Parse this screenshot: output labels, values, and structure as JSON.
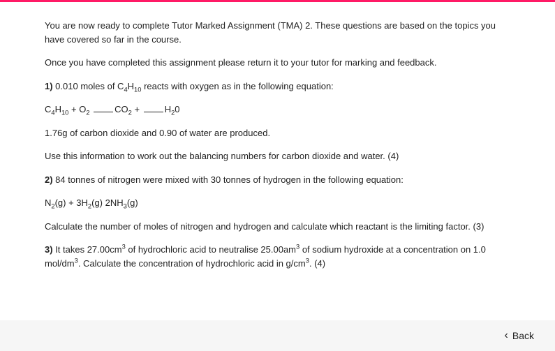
{
  "accent_color": "#ff1a66",
  "text_color": "#222222",
  "footer_bg": "#f6f6f6",
  "intro1": "You are now ready to complete Tutor Marked Assignment (TMA) 2. These questions are based on the topics you have covered so far in the course.",
  "intro2": "Once you have completed this assignment please return it to your tutor for marking and feedback.",
  "q1": {
    "label": "1)",
    "lead_a": " 0.010 moles of C",
    "sub1": "4",
    "lead_b": "H",
    "sub2": "10",
    "lead_c": " reacts with oxygen as in the following equation:",
    "eq_a": "C",
    "eq_s1": "4",
    "eq_b": "H",
    "eq_s2": "10",
    "eq_c": " + O",
    "eq_s3": "2",
    "eq_d": "CO",
    "eq_s4": "2",
    "eq_e": " + ",
    "eq_f": "H",
    "eq_s5": "2",
    "eq_g": "0",
    "line2": "1.76g of carbon dioxide and 0.90 of water are produced.",
    "line3": "Use this information to work out the balancing numbers for carbon dioxide and water. (4)"
  },
  "q2": {
    "label": "2)",
    "lead": " 84 tonnes of nitrogen were mixed with 30 tonnes of hydrogen in the following equation:",
    "eq_a": "N",
    "eq_s1": "2",
    "eq_b": "(g) + 3H",
    "eq_s2": "2",
    "eq_c": "(g)  2NH",
    "eq_s3": "3",
    "eq_d": "(g)",
    "line2": "Calculate the number of moles of nitrogen and hydrogen and calculate which reactant is the limiting factor. (3)"
  },
  "q3": {
    "label": "3)",
    "a": " It takes 27.00cm",
    "sup1": "3",
    "b": " of hydrochloric acid to neutralise 25.00am",
    "sup2": "3",
    "c": " of sodium hydroxide at a concentration on 1.0 mol/dm",
    "sup3": "3",
    "d": ". Calculate the concentration of hydrochloric acid in g/cm",
    "sup4": "3",
    "e": ". (4)"
  },
  "back_label": "Back"
}
